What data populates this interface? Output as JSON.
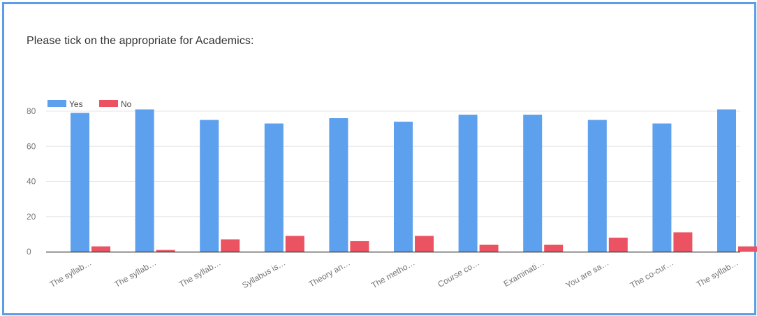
{
  "title": "Please tick on the appropriate for Academics:",
  "colors": {
    "yes": "#5da0ee",
    "no": "#eb5363",
    "grid": "#e6e6e6",
    "axis": "#333333",
    "border": "#5b9ee6"
  },
  "chart_data": {
    "type": "bar",
    "title": "Please tick on the appropriate for Academics:",
    "xlabel": "",
    "ylabel": "",
    "ylim": [
      0,
      80
    ],
    "yticks": [
      0,
      20,
      40,
      60,
      80
    ],
    "grid": true,
    "legend_position": "top-left",
    "categories": [
      "The syllab…",
      "The syllab…",
      "The syllab…",
      "Syllabus is…",
      "Theory an…",
      "The metho…",
      "Course co…",
      "Examinati…",
      "You are sa…",
      "The co-cur…",
      "The syllab…"
    ],
    "series": [
      {
        "name": "Yes",
        "values": [
          79,
          81,
          75,
          73,
          76,
          74,
          78,
          78,
          75,
          73,
          81
        ]
      },
      {
        "name": "No",
        "values": [
          3,
          1,
          7,
          9,
          6,
          9,
          4,
          4,
          8,
          11,
          3
        ]
      }
    ]
  }
}
